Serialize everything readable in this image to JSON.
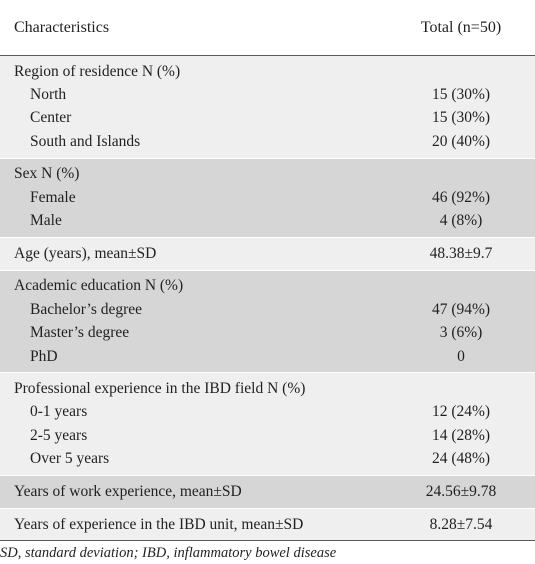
{
  "header": {
    "characteristics": "Characteristics",
    "total": "Total  (n=50)"
  },
  "groups": [
    {
      "title": "Region of residence N (%)",
      "rows": [
        {
          "label": "North",
          "value": "15 (30%)"
        },
        {
          "label": "Center",
          "value": "15 (30%)"
        },
        {
          "label": "South and Islands",
          "value": "20 (40%)"
        }
      ]
    },
    {
      "title": "Sex N (%)",
      "rows": [
        {
          "label": "Female",
          "value": "46 (92%)"
        },
        {
          "label": "Male",
          "value": "4 (8%)"
        }
      ]
    },
    {
      "title": "Age (years), mean±SD",
      "value": "48.38±9.7"
    },
    {
      "title": "Academic education N (%)",
      "rows": [
        {
          "label": "Bachelor’s degree",
          "value": "47 (94%)"
        },
        {
          "label": "Master’s degree",
          "value": "3 (6%)"
        },
        {
          "label": "PhD",
          "value": "0"
        }
      ]
    },
    {
      "title": "Professional experience in the IBD field N (%)",
      "rows": [
        {
          "label": "0-1 years",
          "value": "12 (24%)"
        },
        {
          "label": "2-5 years",
          "value": "14 (28%)"
        },
        {
          "label": "Over 5 years",
          "value": "24 (48%)"
        }
      ]
    },
    {
      "title": "Years of work experience, mean±SD",
      "value": "24.56±9.78"
    },
    {
      "title": "Years of experience in the IBD unit, mean±SD",
      "value": "8.28±7.54"
    }
  ],
  "footnote": "SD, standard deviation; IBD, inflammatory bowel disease",
  "colors": {
    "light_band": "#efefef",
    "dark_band": "#d6d6d6",
    "text": "#231f20"
  }
}
